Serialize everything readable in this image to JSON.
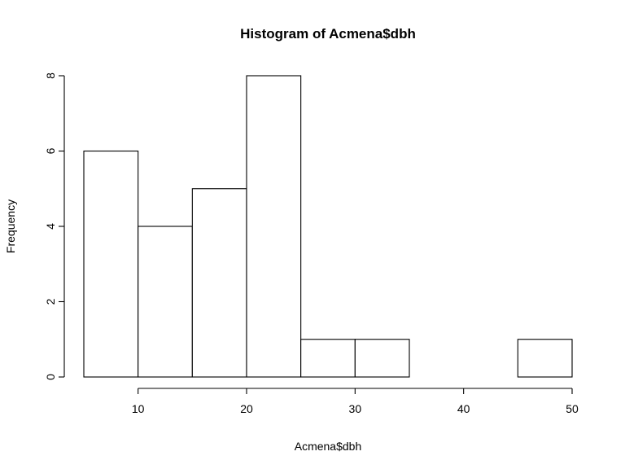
{
  "chart_data": {
    "type": "bar",
    "title": "Histogram of Acmena$dbh",
    "xlabel": "Acmena$dbh",
    "ylabel": "Frequency",
    "bins": [
      {
        "start": 5,
        "end": 10,
        "count": 6
      },
      {
        "start": 10,
        "end": 15,
        "count": 4
      },
      {
        "start": 15,
        "end": 20,
        "count": 5
      },
      {
        "start": 20,
        "end": 25,
        "count": 8
      },
      {
        "start": 25,
        "end": 30,
        "count": 1
      },
      {
        "start": 30,
        "end": 35,
        "count": 1
      },
      {
        "start": 35,
        "end": 40,
        "count": 0
      },
      {
        "start": 40,
        "end": 45,
        "count": 0
      },
      {
        "start": 45,
        "end": 50,
        "count": 1
      }
    ],
    "xlim": [
      5,
      50
    ],
    "ylim": [
      0,
      8
    ],
    "x_ticks": [
      10,
      20,
      30,
      40,
      50
    ],
    "y_ticks": [
      0,
      2,
      4,
      6,
      8
    ],
    "grid": false,
    "colors": {
      "bar_fill": "#ffffff",
      "bar_stroke": "#000000",
      "text": "#000000"
    }
  }
}
